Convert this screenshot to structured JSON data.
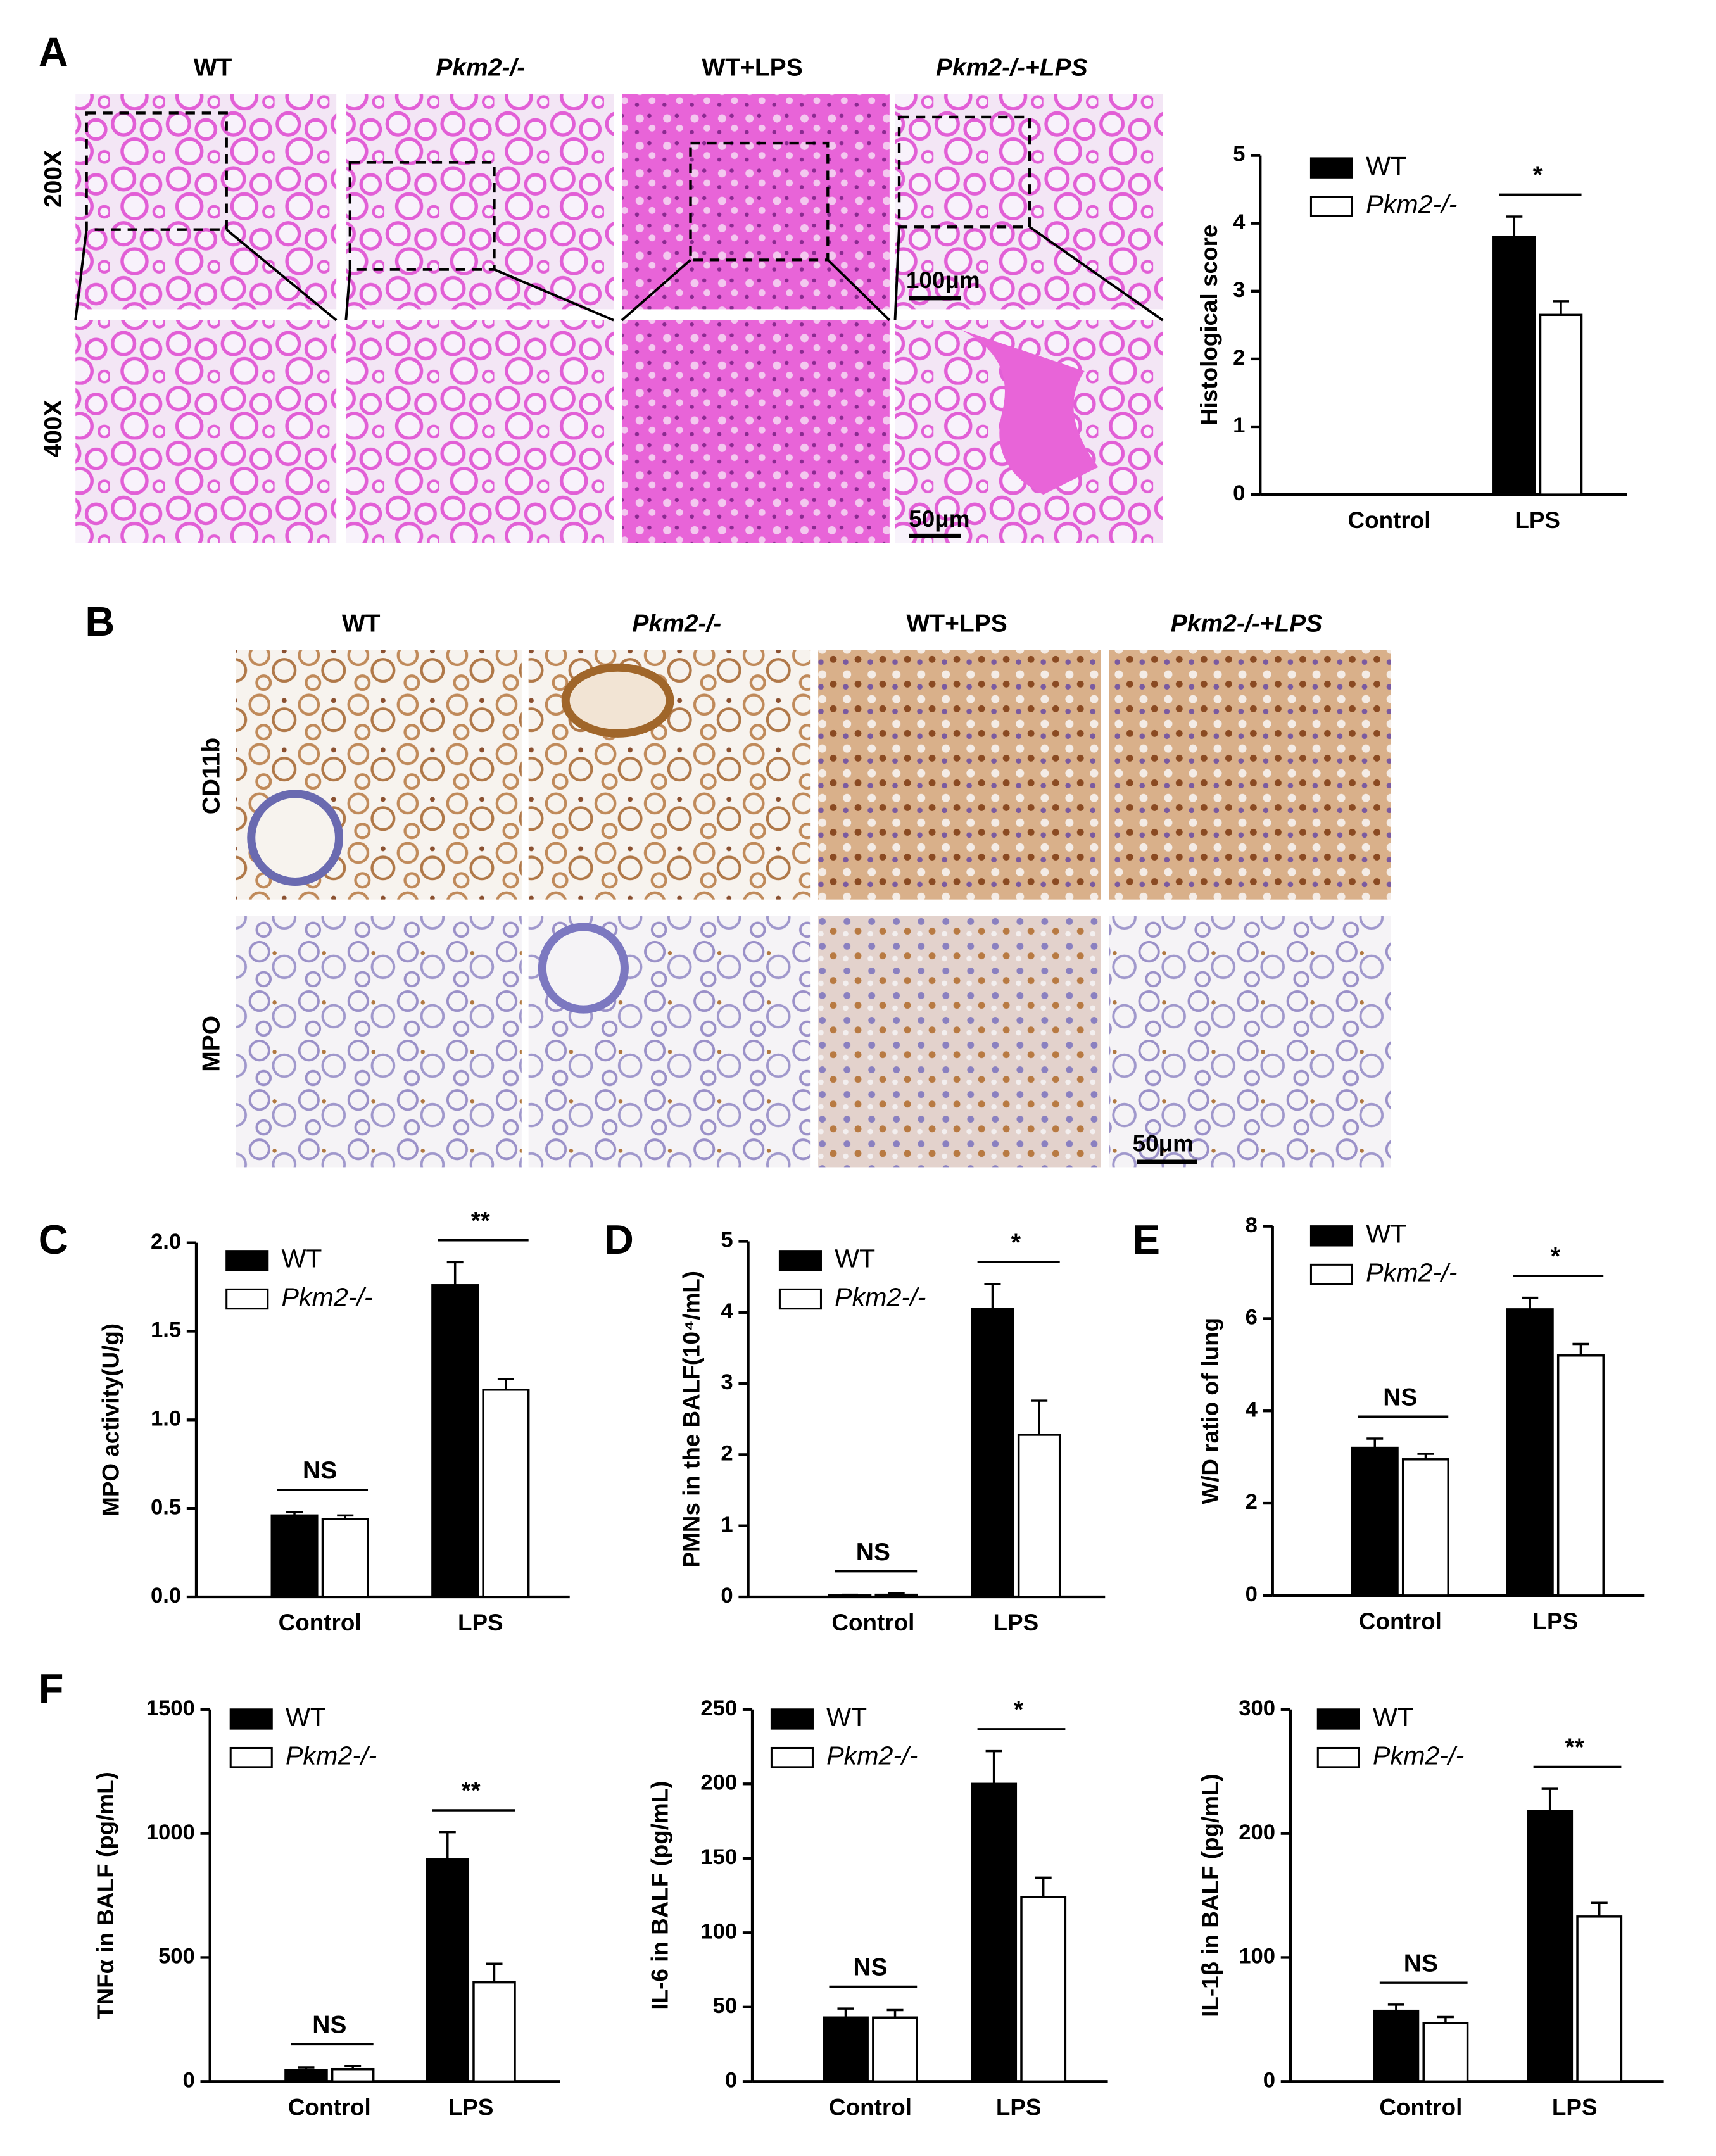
{
  "panel_labels": [
    "A",
    "B",
    "C",
    "D",
    "E",
    "F"
  ],
  "panel_a": {
    "column_headers": [
      "WT",
      "Pkm2-/-",
      "WT+LPS",
      "Pkm2-/-+LPS"
    ],
    "row_labels": [
      "200X",
      "400X"
    ],
    "scale_bars": [
      "100μm",
      "50μm"
    ]
  },
  "panel_b": {
    "column_headers": [
      "WT",
      "Pkm2-/-",
      "WT+LPS",
      "Pkm2-/-+LPS"
    ],
    "row_labels": [
      "CD11b",
      "MPO"
    ],
    "scale_bar": "50μm"
  },
  "chart_data": [
    {
      "type": "bar",
      "y_label": "Histological score",
      "categories": [
        "Control",
        "LPS"
      ],
      "series": [
        {
          "name": "WT",
          "color": "#000000",
          "values": [
            0,
            3.8
          ],
          "errors": [
            null,
            0.3
          ]
        },
        {
          "name": "Pkm2-/-",
          "color": "#ffffff",
          "values": [
            0,
            2.65
          ],
          "errors": [
            null,
            0.2
          ]
        }
      ],
      "significance": [
        null,
        "*"
      ],
      "ylim": [
        0,
        5
      ],
      "yticks": [
        0,
        1,
        2,
        3,
        4,
        5
      ]
    },
    {
      "type": "bar",
      "y_label": "MPO activity(U/g)",
      "categories": [
        "Control",
        "LPS"
      ],
      "series": [
        {
          "name": "WT",
          "color": "#000000",
          "values": [
            0.46,
            1.76
          ],
          "errors": [
            0.02,
            0.13
          ]
        },
        {
          "name": "Pkm2-/-",
          "color": "#ffffff",
          "values": [
            0.44,
            1.17
          ],
          "errors": [
            0.02,
            0.06
          ]
        }
      ],
      "significance": [
        "NS",
        "**"
      ],
      "ylim": [
        0,
        2
      ],
      "yticks": [
        {
          "value": 0,
          "label": "0.0"
        },
        0.5,
        {
          "value": 1,
          "label": "1.0"
        },
        1.5,
        {
          "value": 2,
          "label": "2.0"
        }
      ]
    },
    {
      "type": "bar",
      "y_label": "PMNs in the BALF(10⁴/mL)",
      "categories": [
        "Control",
        "LPS"
      ],
      "series": [
        {
          "name": "WT",
          "color": "#000000",
          "values": [
            0.02,
            4.05
          ],
          "errors": [
            0.01,
            0.35
          ]
        },
        {
          "name": "Pkm2-/-",
          "color": "#ffffff",
          "values": [
            0.03,
            2.28
          ],
          "errors": [
            0.02,
            0.48
          ]
        }
      ],
      "significance": [
        "NS",
        "*"
      ],
      "ylim": [
        0,
        5
      ],
      "yticks": [
        0,
        1,
        2,
        3,
        4,
        5
      ]
    },
    {
      "type": "bar",
      "y_label": "W/D ratio of lung",
      "categories": [
        "Control",
        "LPS"
      ],
      "series": [
        {
          "name": "WT",
          "color": "#000000",
          "values": [
            3.2,
            6.2
          ],
          "errors": [
            0.2,
            0.25
          ]
        },
        {
          "name": "Pkm2-/-",
          "color": "#ffffff",
          "values": [
            2.95,
            5.2
          ],
          "errors": [
            0.12,
            0.25
          ]
        }
      ],
      "significance": [
        "NS",
        "*"
      ],
      "ylim": [
        0,
        8
      ],
      "yticks": [
        0,
        2,
        4,
        6,
        8
      ]
    },
    {
      "type": "bar",
      "y_label": "TNFα in BALF (pg/mL)",
      "categories": [
        "Control",
        "LPS"
      ],
      "series": [
        {
          "name": "WT",
          "color": "#000000",
          "values": [
            45,
            895
          ],
          "errors": [
            12,
            110
          ]
        },
        {
          "name": "Pkm2-/-",
          "color": "#ffffff",
          "values": [
            50,
            400
          ],
          "errors": [
            12,
            75
          ]
        }
      ],
      "significance": [
        "NS",
        "**"
      ],
      "ylim": [
        0,
        1500
      ],
      "yticks": [
        0,
        500,
        1000,
        1500
      ]
    },
    {
      "type": "bar",
      "y_label": "IL-6 in BALF (pg/mL)",
      "categories": [
        "Control",
        "LPS"
      ],
      "series": [
        {
          "name": "WT",
          "color": "#000000",
          "values": [
            43,
            200
          ],
          "errors": [
            6,
            22
          ]
        },
        {
          "name": "Pkm2-/-",
          "color": "#ffffff",
          "values": [
            43,
            124
          ],
          "errors": [
            5,
            13
          ]
        }
      ],
      "significance": [
        "NS",
        "*"
      ],
      "ylim": [
        0,
        250
      ],
      "yticks": [
        0,
        50,
        100,
        150,
        200,
        250
      ]
    },
    {
      "type": "bar",
      "y_label": "IL-1β in BALF (pg/mL)",
      "categories": [
        "Control",
        "LPS"
      ],
      "series": [
        {
          "name": "WT",
          "color": "#000000",
          "values": [
            57,
            218
          ],
          "errors": [
            5,
            18
          ]
        },
        {
          "name": "Pkm2-/-",
          "color": "#ffffff",
          "values": [
            47,
            133
          ],
          "errors": [
            5,
            11
          ]
        }
      ],
      "significance": [
        "NS",
        "**"
      ],
      "ylim": [
        0,
        300
      ],
      "yticks": [
        0,
        100,
        200,
        300
      ]
    }
  ]
}
